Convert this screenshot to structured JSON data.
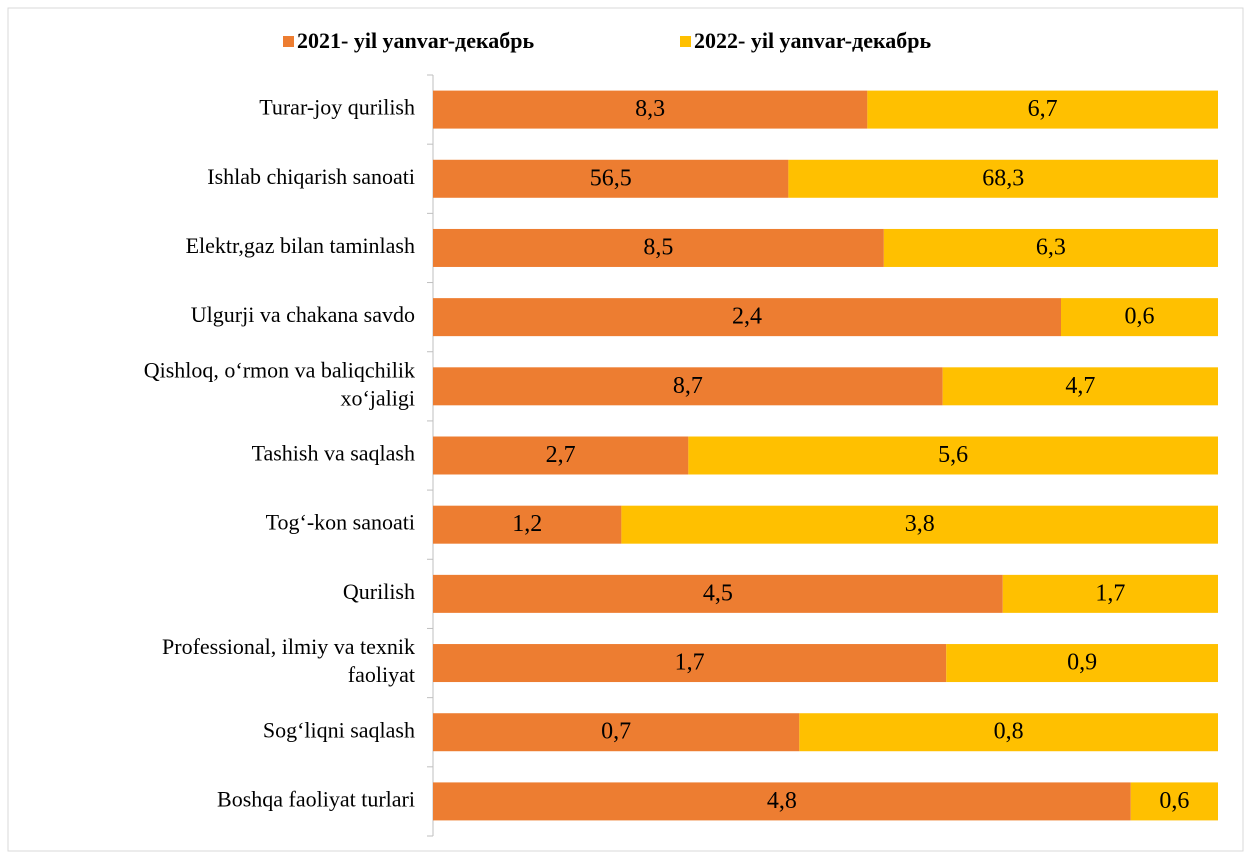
{
  "chart_data": {
    "type": "bar",
    "orientation": "horizontal",
    "stack": "percent",
    "categories": [
      "Turar-joy qurilish",
      "Ishlab chiqarish sanoati",
      "Elektr,gaz bilan taminlash",
      "Ulgurji va chakana savdo",
      "Qishloq, o‘rmon va baliqchilik\nxo‘jaligi",
      "Tashish va saqlash",
      "Tog‘-kon sanoati",
      "Qurilish",
      "Professional, ilmiy va texnik\nfaoliyat",
      "Sog‘liqni saqlash",
      "Boshqa faoliyat turlari"
    ],
    "series": [
      {
        "name": "2021- yil yanvar-декабрь",
        "color": "#ED7D31",
        "values": [
          8.3,
          56.5,
          8.5,
          2.4,
          8.7,
          2.7,
          1.2,
          4.5,
          1.7,
          0.7,
          4.8
        ],
        "value_labels": [
          "8,3",
          "56,5",
          "8,5",
          "2,4",
          "8,7",
          "2,7",
          "1,2",
          "4,5",
          "1,7",
          "0,7",
          "4,8"
        ]
      },
      {
        "name": "2022- yil yanvar-декабрь",
        "color": "#FFC000",
        "values": [
          6.7,
          68.3,
          6.3,
          0.6,
          4.7,
          5.6,
          3.8,
          1.7,
          0.9,
          0.8,
          0.6
        ],
        "value_labels": [
          "6,7",
          "68,3",
          "6,3",
          "0,6",
          "4,7",
          "5,6",
          "3,8",
          "1,7",
          "0,9",
          "0,8",
          "0,6"
        ]
      }
    ],
    "legend": "top"
  }
}
